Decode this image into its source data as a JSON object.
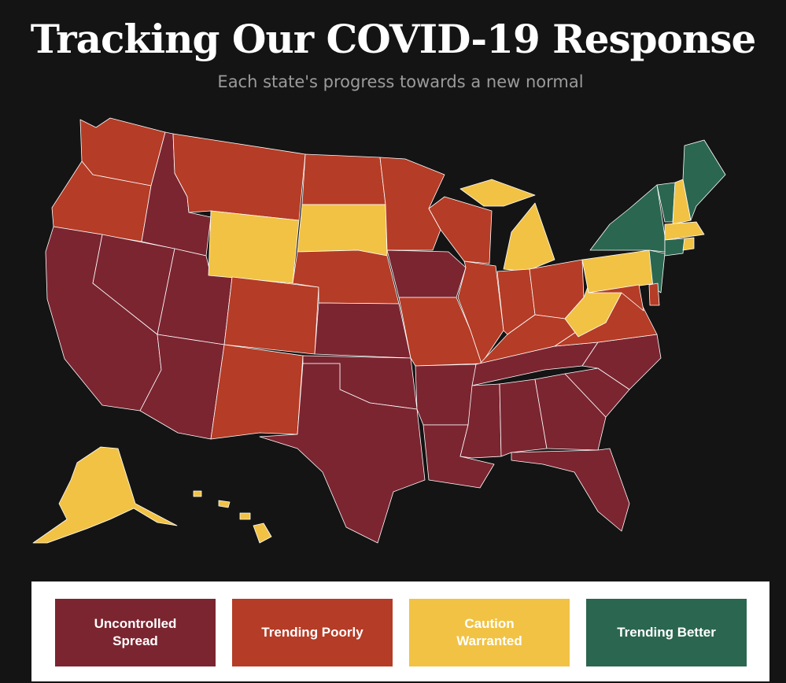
{
  "header": {
    "title": "Tracking Our COVID-19 Response",
    "subtitle": "Each state's progress towards a new normal"
  },
  "categories": {
    "uncontrolled": {
      "label": "Uncontrolled Spread",
      "color": "#7b2530"
    },
    "poor": {
      "label": "Trending Poorly",
      "color": "#b53c26"
    },
    "caution": {
      "label": "Caution Warranted",
      "color": "#f1c244"
    },
    "better": {
      "label": "Trending Better",
      "color": "#2b6650"
    }
  },
  "legend": {
    "items": [
      {
        "key": "uncontrolled",
        "label": "Uncontrolled Spread",
        "color": "#7b2530"
      },
      {
        "key": "poor",
        "label": "Trending Poorly",
        "color": "#b53c26"
      },
      {
        "key": "caution",
        "label": "Caution Warranted",
        "color": "#f1c244"
      },
      {
        "key": "better",
        "label": "Trending Better",
        "color": "#2b6650"
      }
    ]
  },
  "states": {
    "WA": "poor",
    "OR": "poor",
    "CA": "uncontrolled",
    "ID": "uncontrolled",
    "NV": "uncontrolled",
    "UT": "uncontrolled",
    "AZ": "uncontrolled",
    "MT": "poor",
    "WY": "caution",
    "CO": "poor",
    "NM": "poor",
    "ND": "poor",
    "SD": "caution",
    "NE": "poor",
    "KS": "uncontrolled",
    "OK": "uncontrolled",
    "TX": "uncontrolled",
    "MN": "poor",
    "IA": "uncontrolled",
    "MO": "poor",
    "AR": "uncontrolled",
    "LA": "uncontrolled",
    "WI": "poor",
    "IL": "poor",
    "MI": "caution",
    "IN": "poor",
    "OH": "poor",
    "KY": "poor",
    "TN": "uncontrolled",
    "MS": "uncontrolled",
    "AL": "uncontrolled",
    "GA": "uncontrolled",
    "FL": "uncontrolled",
    "SC": "uncontrolled",
    "NC": "uncontrolled",
    "VA": "poor",
    "WV": "caution",
    "PA": "caution",
    "NY": "better",
    "NJ": "better",
    "DE": "poor",
    "MD": "poor",
    "VT": "better",
    "NH": "caution",
    "ME": "better",
    "MA": "caution",
    "CT": "better",
    "RI": "caution",
    "AK": "caution",
    "HI": "caution"
  }
}
